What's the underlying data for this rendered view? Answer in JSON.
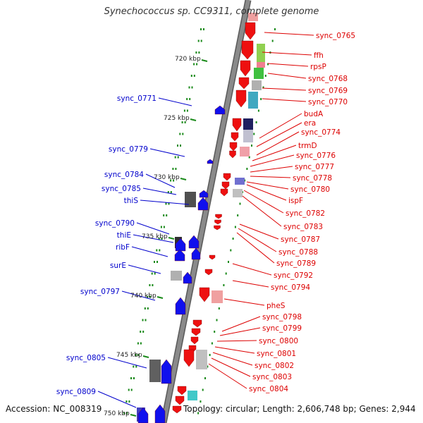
{
  "title": "Synechococcus sp. CC9311, complete genome",
  "footer": {
    "accession": "Accession: NC_008319",
    "topology": "Topology: circular; Length: 2,606,748 bp; Genes: 2,944"
  },
  "colors": {
    "forward_label": "#0000cc",
    "reverse_label": "#dd0000",
    "backbone": "#8a8a8a",
    "forward_gene": "#1010ee",
    "reverse_gene": "#ee1010",
    "tick": "#1a8a1a"
  },
  "scale_labels": [
    "720 kbp",
    "725 kbp",
    "730 kbp",
    "735 kbp",
    "740 kbp",
    "745 kbp",
    "750 kbp"
  ],
  "forward_labels": [
    "sync_0771",
    "sync_0779",
    "sync_0784",
    "sync_0785",
    "thiS",
    "sync_0790",
    "thiE",
    "ribF",
    "surE",
    "sync_0797",
    "sync_0805",
    "sync_0809"
  ],
  "reverse_labels": [
    "sync_0765",
    "ffh",
    "rpsP",
    "sync_0768",
    "sync_0769",
    "sync_0770",
    "budA",
    "era",
    "sync_0774",
    "trmD",
    "sync_0776",
    "sync_0777",
    "sync_0778",
    "sync_0780",
    "ispF",
    "sync_0782",
    "sync_0783",
    "sync_0787",
    "sync_0788",
    "sync_0789",
    "sync_0792",
    "sync_0794",
    "pheS",
    "sync_0798",
    "sync_0799",
    "sync_0800",
    "sync_0801",
    "sync_0802",
    "sync_0803",
    "sync_0804"
  ]
}
